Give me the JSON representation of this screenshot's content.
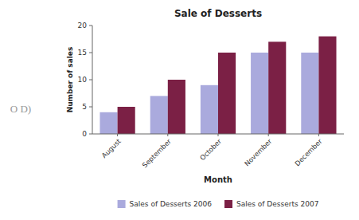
{
  "chart_data": {
    "type": "bar",
    "title": "Sale of Desserts",
    "x_label": "Month",
    "y_label": "Number of sales",
    "categories": [
      "August",
      "September",
      "October",
      "November",
      "December"
    ],
    "series": [
      {
        "name": "Sales of Desserts 2006",
        "color": "#AAAADD",
        "values": [
          4,
          7,
          9,
          15,
          15
        ]
      },
      {
        "name": "Sales of Desserts 2007",
        "color": "#7B2045",
        "values": [
          5,
          10,
          15,
          17,
          18
        ]
      }
    ],
    "ylim": [
      0,
      20
    ],
    "yticks": [
      0,
      5,
      10,
      15,
      20
    ],
    "grid": false,
    "legend": "bottom",
    "annotations": [
      "O  D)"
    ]
  }
}
